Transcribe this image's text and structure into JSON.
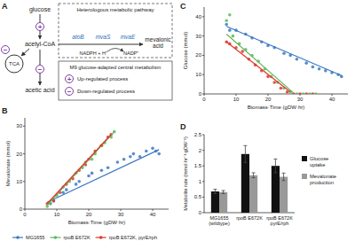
{
  "diagram": {
    "panel": "A",
    "glucose": "glucose",
    "acetyl_coa": "acetyl-CoA",
    "tca": "TCA",
    "acetic_acid": "acetic acid",
    "mevalonic_acid": "mevalonic acid",
    "pathway_title": "Heterologous metabolic pathway",
    "enzymes": [
      "atoB",
      "mvaS",
      "mvaE"
    ],
    "cofactor_in": "NADPH + H⁺",
    "cofactor_out": "NADP⁺",
    "legend_title": "M9 glucose-adapted central metabolism",
    "up_symbol": "+",
    "up_label": "Up-regulated process",
    "down_symbol": "−",
    "down_label": "Down-regulated process"
  },
  "chart_data": [
    {
      "type": "scatter",
      "title": "B",
      "x_label": "Biomass·Time (gDW·hr)",
      "y_label": "Mevalonate (mmol)",
      "xlim": [
        0,
        45
      ],
      "ylim": [
        0,
        33
      ],
      "xticks": [
        0,
        10,
        20,
        30,
        40
      ],
      "yticks": [
        0,
        10,
        20,
        30
      ],
      "grid": false,
      "legend": "bottom",
      "series": [
        {
          "name": "MG1655",
          "color": "#3b78c2",
          "marker": "circle",
          "x": [
            8,
            9,
            12,
            13,
            16,
            17,
            20,
            21,
            24,
            26,
            29,
            31,
            33,
            34,
            36,
            38,
            40,
            41,
            42
          ],
          "values": [
            2,
            3,
            6,
            7,
            9,
            10,
            12,
            13,
            14,
            15,
            17,
            18,
            19,
            20,
            19,
            21,
            22,
            21,
            20
          ]
        },
        {
          "name": "rpoB E672K",
          "color": "#5cb85c",
          "marker": "circle",
          "x": [
            7,
            8,
            10,
            12,
            14,
            16,
            18,
            19,
            21,
            22,
            24,
            25,
            27,
            28
          ],
          "values": [
            1,
            2,
            5,
            8,
            10,
            13,
            15,
            17,
            18,
            20,
            23,
            24,
            26,
            28
          ]
        },
        {
          "name": "rpoB E672K, pyrE/rph",
          "color": "#e0362a",
          "marker": "circle",
          "x": [
            7,
            9,
            11,
            13,
            15,
            17,
            19,
            20,
            22,
            24,
            26,
            27
          ],
          "values": [
            2,
            3,
            6,
            9,
            11,
            14,
            16,
            18,
            21,
            23,
            26,
            27
          ]
        },
        {
          "type": "line",
          "color": "#3b78c2",
          "x": [
            7,
            42
          ],
          "values": [
            2.5,
            21.5
          ]
        },
        {
          "type": "line",
          "color": "#5cb85c",
          "x": [
            7,
            28
          ],
          "values": [
            1.5,
            28
          ]
        },
        {
          "type": "line",
          "color": "#e0362a",
          "x": [
            7,
            27
          ],
          "values": [
            2,
            27
          ]
        }
      ]
    },
    {
      "type": "scatter",
      "title": "C",
      "x_label": "Biomass·Time (gDW·hr)",
      "y_label": "Glucose (mmol)",
      "xlim": [
        0,
        45
      ],
      "ylim": [
        0,
        45
      ],
      "xticks": [
        0,
        10,
        20,
        30,
        40
      ],
      "yticks": [
        0,
        10,
        20,
        30,
        40
      ],
      "grid": false,
      "series": [
        {
          "color": "#3b78c2",
          "marker": "circle",
          "x": [
            7,
            8,
            10,
            13,
            15,
            18,
            20,
            22,
            25,
            27,
            29,
            32,
            34,
            36,
            38,
            40,
            42,
            43
          ],
          "values": [
            36,
            33,
            33,
            31,
            29,
            27,
            25,
            24,
            21,
            20,
            18,
            16,
            14,
            13,
            12,
            11,
            10,
            9
          ]
        },
        {
          "color": "#5cb85c",
          "marker": "circle",
          "x": [
            7,
            8,
            9,
            11,
            13,
            15,
            17,
            19,
            21,
            23,
            25,
            27,
            29,
            31,
            33,
            35
          ],
          "values": [
            38,
            41,
            30,
            26,
            23,
            20,
            17,
            13,
            9,
            6,
            3,
            1,
            0,
            0,
            0,
            0
          ]
        },
        {
          "color": "#e0362a",
          "marker": "circle",
          "x": [
            7,
            8,
            10,
            12,
            14,
            16,
            18,
            20,
            22,
            24,
            26,
            28,
            30,
            32,
            34
          ],
          "values": [
            27,
            26,
            24,
            22,
            18,
            15,
            12,
            9,
            6,
            3,
            1,
            0,
            0,
            0,
            0
          ]
        },
        {
          "type": "line",
          "color": "#3b78c2",
          "x": [
            7,
            43
          ],
          "values": [
            35,
            9.5
          ]
        },
        {
          "type": "line",
          "color": "#5cb85c",
          "x": [
            7,
            28
          ],
          "values": [
            31,
            0.5
          ]
        },
        {
          "type": "line",
          "color": "#e0362a",
          "x": [
            7,
            27
          ],
          "values": [
            27,
            1
          ]
        }
      ]
    },
    {
      "type": "bar",
      "title": "D",
      "y_label": "Metabolite rate (mmol·hr⁻¹·gDW⁻¹)",
      "categories": [
        "MG1655\n(wildtype)",
        "rpoB E672K",
        "rpoB E672K\npyrE/rph"
      ],
      "ylim": [
        0,
        2.5
      ],
      "yticks": [
        0,
        0.5,
        1,
        1.5,
        2,
        2.5
      ],
      "grid": false,
      "legend": "right",
      "series": [
        {
          "name": "Glucose uptake",
          "color": "#111111",
          "values": [
            0.68,
            1.88,
            1.5
          ],
          "errors": [
            0.07,
            0.27,
            0.22
          ]
        },
        {
          "name": "Mevalonate production",
          "color": "#999999",
          "values": [
            0.66,
            1.2,
            1.15
          ],
          "errors": [
            0.05,
            0.08,
            0.12
          ]
        }
      ]
    }
  ]
}
